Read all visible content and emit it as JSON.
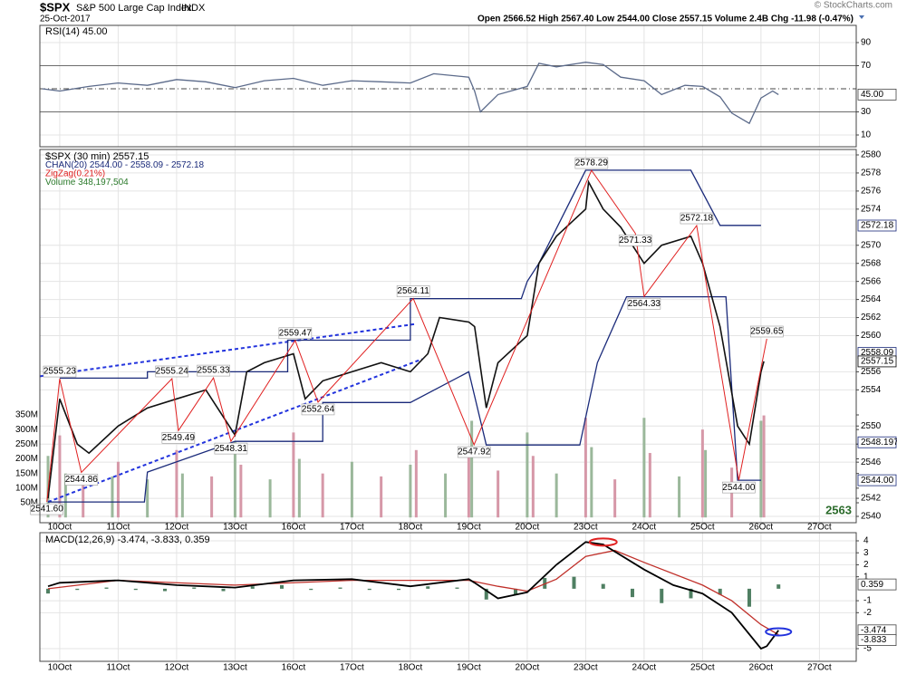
{
  "header": {
    "symbol": "$SPX",
    "name": "S&P 500 Large Cap Index",
    "exchange": "INDX",
    "date": "25-Oct-2017",
    "ohlc": "Open 2566.52  High 2567.40  Low 2544.00  Close 2557.15  Volume 2.4B  Chg -11.98 (-0.47%)",
    "copyright": "© StockCharts.com"
  },
  "chart_data": [
    {
      "type": "line",
      "legend": "RSI(14) 45.00",
      "last_label": "45.00",
      "xlim": [
        -0.34,
        13.63
      ],
      "ylim": [
        -0.2,
        104.9
      ],
      "yticks": [
        10,
        30,
        70,
        90
      ],
      "grid": true,
      "series": [
        {
          "color": "#5b6a8a",
          "x": [
            -0.3,
            0,
            0.5,
            1,
            1.5,
            2,
            2.5,
            3,
            3.5,
            4,
            4.5,
            5,
            5.5,
            6,
            6.4,
            7,
            7.1,
            7.2,
            7.5,
            8,
            8.2,
            8.5,
            9,
            9.3,
            9.6,
            10,
            10.3,
            10.7,
            11,
            11.3,
            11.5,
            11.8,
            12,
            12.2,
            12.3
          ],
          "values": [
            50,
            48,
            52,
            55,
            53,
            58,
            56,
            51,
            57,
            59,
            53,
            57,
            56,
            55,
            63,
            60,
            48,
            30,
            45,
            52,
            72,
            69,
            73,
            71,
            60,
            57,
            45,
            53,
            52,
            43,
            29,
            20,
            42,
            48,
            45
          ]
        }
      ]
    },
    {
      "type": "price",
      "legend": "$SPX (30 min) 2557.15",
      "legend_chan": "CHAN(20) 2544.00 - 2558.09 - 2572.18",
      "legend_zz": "ZigZag(0.21%)",
      "legend_vol": "Volume 348,197,504",
      "corner_label": "2563",
      "last_labels": [
        "2572.18",
        "2558.09",
        "2557.15",
        "2548.1975",
        "2544.00"
      ],
      "last_values": [
        2572.18,
        2558.09,
        2557.15,
        2548.1975,
        2544.0
      ],
      "xlim": [
        -0.34,
        13.63
      ],
      "xticks": [
        {
          "value": 0,
          "label": "10Oct"
        },
        {
          "value": 1,
          "label": "11Oct"
        },
        {
          "value": 2,
          "label": "12Oct"
        },
        {
          "value": 3,
          "label": "13Oct"
        },
        {
          "value": 4,
          "label": "16Oct"
        },
        {
          "value": 5,
          "label": "17Oct"
        },
        {
          "value": 6,
          "label": "18Oct"
        },
        {
          "value": 7,
          "label": "19Oct"
        },
        {
          "value": 8,
          "label": "20Oct"
        },
        {
          "value": 9,
          "label": "23Oct"
        },
        {
          "value": 10,
          "label": "24Oct"
        },
        {
          "value": 11,
          "label": "25Oct"
        },
        {
          "value": 12,
          "label": "26Oct"
        },
        {
          "value": 13,
          "label": "27Oct"
        }
      ],
      "ylim": [
        2539.3,
        2580.6
      ],
      "yticks": [
        2540,
        2542,
        2546,
        2548,
        2550,
        2554,
        2556,
        2560,
        2562,
        2564,
        2566,
        2568,
        2570,
        2574,
        2576,
        2578,
        2580
      ],
      "grid": true,
      "y2lim": [
        -18,
        1256
      ],
      "y2ticks": [
        {
          "value": 50,
          "label": "50M"
        },
        {
          "value": 100,
          "label": "100M"
        },
        {
          "value": 150,
          "label": "150M"
        },
        {
          "value": 200,
          "label": "200M"
        },
        {
          "value": 250,
          "label": "250M"
        },
        {
          "value": 300,
          "label": "300M"
        },
        {
          "value": 350,
          "label": "350M"
        }
      ],
      "close": {
        "color": "#111",
        "x": [
          -0.2,
          0,
          0.3,
          0.5,
          1,
          1.5,
          2,
          2.5,
          3,
          3.2,
          3.5,
          4,
          4.2,
          4.5,
          5,
          5.5,
          6,
          6.3,
          6.5,
          7,
          7.1,
          7.3,
          7.5,
          8,
          8.2,
          8.5,
          9,
          9.05,
          9.3,
          9.6,
          10,
          10.3,
          10.8,
          11,
          11.3,
          11.6,
          11.8,
          12,
          12.05
        ],
        "values": [
          2542,
          2553,
          2548,
          2547,
          2550,
          2552,
          2553,
          2554,
          2549,
          2556,
          2557,
          2558,
          2553,
          2555,
          2556,
          2557,
          2556,
          2558,
          2562,
          2561.5,
          2561,
          2552,
          2557,
          2560,
          2568,
          2571,
          2574,
          2577,
          2574,
          2572,
          2568,
          2570,
          2571,
          2568,
          2561,
          2550,
          2548,
          2556,
          2557.15
        ]
      },
      "upper": {
        "color": "#1a2a7a",
        "x": [
          0,
          1.5,
          1.5,
          3.9,
          3.9,
          6,
          6,
          7.9,
          8.0,
          8.2,
          9.0,
          10.8,
          11.3,
          12
        ],
        "values": [
          2555.3,
          2555.3,
          2556,
          2556,
          2559.5,
          2559.5,
          2564.1,
          2564.1,
          2566,
          2568,
          2578.3,
          2578.3,
          2572.2,
          2572.2
        ]
      },
      "lower": {
        "color": "#1a2a7a",
        "x": [
          -0.2,
          1.45,
          1.5,
          3.0,
          4.5,
          4.5,
          6.0,
          7.0,
          7.3,
          8.9,
          9.2,
          9.7,
          11.4,
          11.6,
          12
        ],
        "values": [
          2541.6,
          2541.6,
          2544.9,
          2548.3,
          2548.3,
          2552.6,
          2552.6,
          2556,
          2547.9,
          2547.9,
          2557,
          2564.3,
          2564.3,
          2544,
          2544
        ]
      },
      "zigzag": {
        "color": "#e02020",
        "x": [
          -0.22,
          0,
          0.37,
          1.92,
          2.03,
          2.63,
          2.93,
          4.03,
          4.42,
          6.05,
          7.09,
          9.1,
          9.85,
          10.0,
          10.9,
          11.62,
          12.1
        ],
        "values": [
          2541.6,
          2555.23,
          2544.86,
          2555.24,
          2549.49,
          2555.33,
          2548.31,
          2559.47,
          2552.64,
          2564.11,
          2547.92,
          2578.29,
          2571.33,
          2564.33,
          2572.18,
          2544.0,
          2559.65
        ],
        "value_labels": [
          "2541.60",
          "2555.23",
          "2544.86",
          "2555.24",
          "2549.49",
          "2555.33",
          "2548.31",
          "2559.47",
          "2552.64",
          "2564.11",
          "2547.92",
          "2578.29",
          "2571.33",
          "2564.33",
          "2572.18",
          "2544.00",
          "2559.65"
        ]
      },
      "volume": {
        "axis": "y2",
        "colors": [
          "#9bb89b",
          "#d698a8"
        ],
        "x": [
          -0.2,
          0,
          0.1,
          0.4,
          0.9,
          1.0,
          1.5,
          2.0,
          2.1,
          2.6,
          3.0,
          3.1,
          3.6,
          4.0,
          4.1,
          4.5,
          5.0,
          5.5,
          6.0,
          6.1,
          6.6,
          7.0,
          7.05,
          7.5,
          8.0,
          8.1,
          8.5,
          9.0,
          9.1,
          9.5,
          10.0,
          10.1,
          10.6,
          11.0,
          11.05,
          11.5,
          12.0,
          12.05
        ],
        "values": [
          210,
          280,
          150,
          120,
          140,
          190,
          130,
          230,
          150,
          140,
          260,
          180,
          130,
          290,
          200,
          150,
          190,
          140,
          180,
          230,
          150,
          230,
          330,
          160,
          290,
          210,
          150,
          340,
          240,
          130,
          340,
          220,
          140,
          300,
          230,
          170,
          330,
          348.2
        ]
      }
    },
    {
      "type": "macd",
      "legend": "MACD(12,26,9) -3.474, -3.833, 0.359",
      "last_labels": [
        "0.359",
        "-3.474",
        "-3.833"
      ],
      "last_values": [
        0.359,
        -3.474,
        -3.833
      ],
      "xlim": [
        -0.34,
        13.63
      ],
      "ylim": [
        -6.06,
        4.68
      ],
      "yticks": [
        -5,
        -2,
        -1,
        1,
        2,
        3,
        4
      ],
      "grid": true,
      "macd": {
        "color": "#000",
        "x": [
          -0.2,
          0,
          1,
          2,
          3,
          4,
          5,
          6,
          7,
          7.1,
          7.5,
          8,
          8.5,
          9,
          9.3,
          10,
          10.5,
          11,
          11.5,
          12,
          12.1,
          12.3
        ],
        "values": [
          0.2,
          0.5,
          0.7,
          0.3,
          0.1,
          0.7,
          0.8,
          0.2,
          0.8,
          0.5,
          -0.8,
          -0.3,
          2,
          3.9,
          3.7,
          1.6,
          0.3,
          -0.4,
          -2,
          -5,
          -4.8,
          -3.474
        ]
      },
      "signal": {
        "color": "#c0302a",
        "x": [
          -0.2,
          1,
          3,
          5,
          7,
          7.5,
          8,
          8.5,
          9,
          9.5,
          10,
          11,
          11.5,
          12,
          12.3
        ],
        "values": [
          0,
          0.7,
          0.3,
          0.7,
          0.7,
          0.2,
          -0.2,
          0.8,
          2.7,
          3.2,
          2.2,
          0.3,
          -1,
          -3,
          -3.833
        ]
      },
      "hist": {
        "color": "#4f7f62",
        "x": [
          -0.2,
          0.3,
          0.8,
          1.3,
          1.8,
          2.3,
          2.8,
          3.3,
          3.8,
          4.3,
          4.8,
          5.3,
          5.8,
          6.3,
          6.8,
          7.3,
          7.8,
          8.3,
          8.8,
          9.3,
          9.8,
          10.3,
          10.8,
          11.3,
          11.8,
          12.3
        ],
        "values": [
          -0.4,
          -0.1,
          0.1,
          -0.1,
          -0.2,
          0.1,
          -0.2,
          0.2,
          0.3,
          -0.1,
          0.1,
          -0.1,
          -0.1,
          0.2,
          0.1,
          -0.9,
          -0.5,
          0.9,
          1.0,
          0.4,
          -0.7,
          -1.2,
          -0.8,
          -0.5,
          -1.5,
          0.359
        ]
      }
    }
  ]
}
